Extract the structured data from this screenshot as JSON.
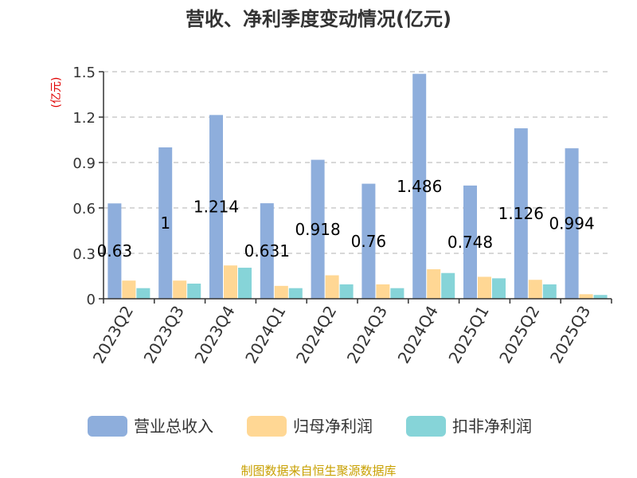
{
  "chart_data": {
    "type": "bar",
    "title": "营收、净利季度变动情况(亿元)",
    "ylabel": "(亿元)",
    "xlabel": "",
    "ylim": [
      0,
      1.5
    ],
    "yticks": [
      "0",
      "0.3",
      "0.6",
      "0.9",
      "1.2",
      "1.5"
    ],
    "grid": true,
    "legend_position": "bottom",
    "categories": [
      "2023Q2",
      "2023Q3",
      "2023Q4",
      "2024Q1",
      "2024Q2",
      "2024Q3",
      "2024Q4",
      "2025Q1",
      "2025Q2",
      "2025Q3"
    ],
    "series": [
      {
        "name": "营业总收入",
        "color": "#8eaedc",
        "values": [
          0.63,
          1,
          1.214,
          0.631,
          0.918,
          0.76,
          1.486,
          0.748,
          1.126,
          0.994
        ],
        "labels": [
          "0.63",
          "1",
          "1.214",
          "0.631",
          "0.918",
          "0.76",
          "1.486",
          "0.748",
          "1.126",
          "0.994"
        ]
      },
      {
        "name": "归母净利润",
        "color": "#ffd794",
        "values": [
          0.12,
          0.12,
          0.22,
          0.085,
          0.155,
          0.095,
          0.195,
          0.145,
          0.125,
          0.03
        ]
      },
      {
        "name": "扣非净利润",
        "color": "#86d4d8",
        "values": [
          0.07,
          0.1,
          0.205,
          0.07,
          0.095,
          0.07,
          0.17,
          0.135,
          0.095,
          0.025
        ]
      }
    ],
    "source": "制图数据来自恒生聚源数据库"
  }
}
